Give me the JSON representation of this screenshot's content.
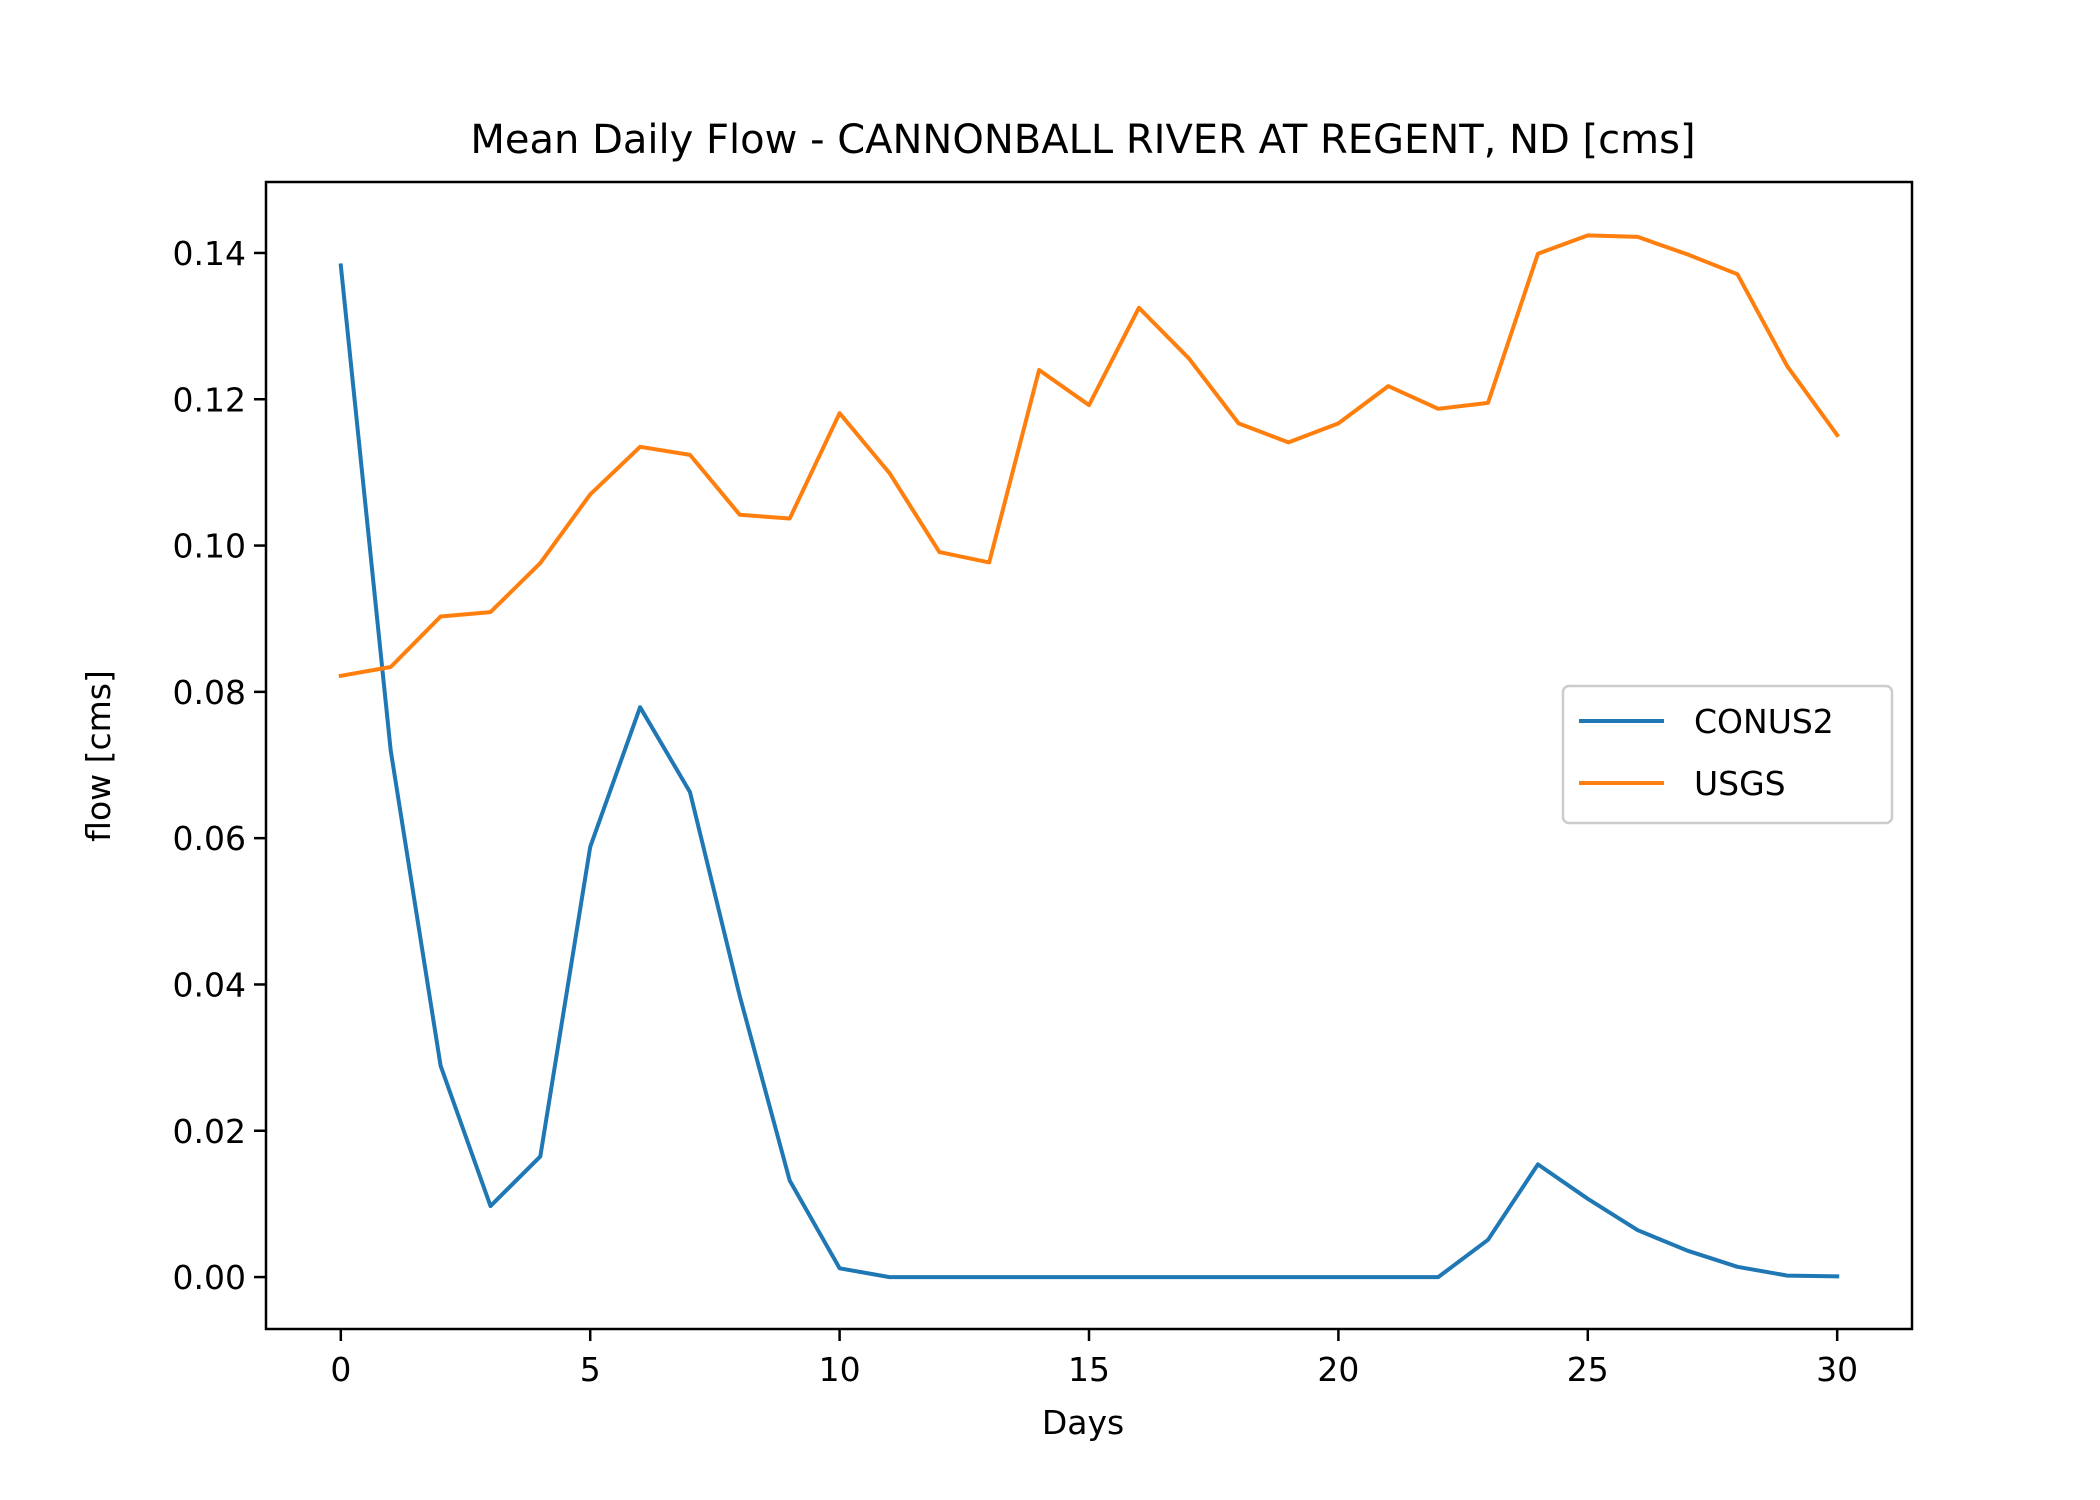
{
  "chart_data": {
    "type": "line",
    "title": "Mean Daily Flow - CANNONBALL RIVER AT REGENT, ND [cms]",
    "xlabel": "Days",
    "ylabel": "flow [cms]",
    "xlim": [
      -1.5,
      31.5
    ],
    "ylim": [
      -0.0071,
      0.1497
    ],
    "x_ticks": [
      0,
      5,
      10,
      15,
      20,
      25,
      30
    ],
    "y_ticks": [
      0.0,
      0.02,
      0.04,
      0.06,
      0.08,
      0.1,
      0.12,
      0.14
    ],
    "x_tick_labels": [
      "0",
      "5",
      "10",
      "15",
      "20",
      "25",
      "30"
    ],
    "y_tick_labels": [
      "0.00",
      "0.02",
      "0.04",
      "0.06",
      "0.08",
      "0.10",
      "0.12",
      "0.14"
    ],
    "grid": false,
    "legend": "center-right",
    "x": [
      0,
      1,
      2,
      3,
      4,
      5,
      6,
      7,
      8,
      9,
      10,
      11,
      12,
      13,
      14,
      15,
      16,
      17,
      18,
      19,
      20,
      21,
      22,
      23,
      24,
      25,
      26,
      27,
      28,
      29,
      30
    ],
    "series": [
      {
        "name": "CONUS2",
        "color": "#1f77b4",
        "values": [
          0.1383,
          0.072,
          0.0289,
          0.0097,
          0.0165,
          0.0588,
          0.0779,
          0.0663,
          0.0384,
          0.0132,
          0.0012,
          0.0,
          0.0,
          0.0,
          0.0,
          0.0,
          0.0,
          0.0,
          0.0,
          0.0,
          0.0,
          0.0,
          0.0,
          0.0051,
          0.0154,
          0.0107,
          0.0064,
          0.0036,
          0.0014,
          0.0002,
          0.0001
        ]
      },
      {
        "name": "USGS",
        "color": "#ff7f0e",
        "values": [
          0.0822,
          0.0834,
          0.0903,
          0.0909,
          0.0976,
          0.107,
          0.1135,
          0.1124,
          0.1042,
          0.1037,
          0.1181,
          0.1099,
          0.0991,
          0.0977,
          0.124,
          0.1192,
          0.1325,
          0.1256,
          0.1167,
          0.1141,
          0.1167,
          0.1218,
          0.1187,
          0.1195,
          0.1399,
          0.1424,
          0.1422,
          0.1398,
          0.1371,
          0.1245,
          0.1151
        ]
      }
    ]
  }
}
